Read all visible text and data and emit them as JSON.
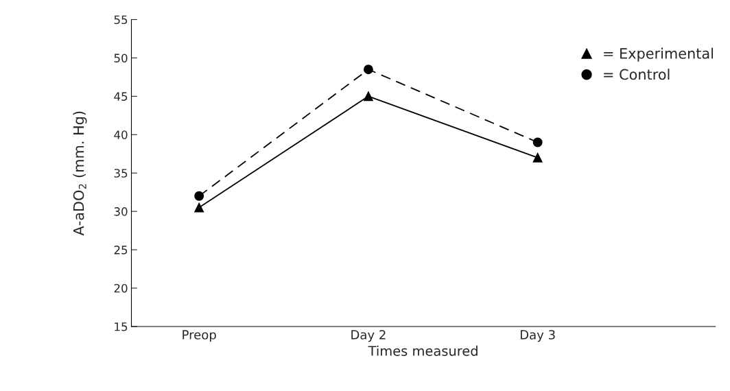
{
  "chart_data": {
    "type": "line",
    "xlabel": "Times measured",
    "ylabel": "A-aDO$_{2}$ (mm. Hg)",
    "categories": [
      "Preop",
      "Day 2",
      "Day 3"
    ],
    "series": [
      {
        "name": "= Experimental",
        "color": "#000000",
        "marker": "triangle",
        "line_style": "solid",
        "values": [
          30.5,
          45,
          37
        ]
      },
      {
        "name": "= Control",
        "color": "#000000",
        "marker": "circle",
        "line_style": "dashed",
        "values": [
          32,
          48.5,
          39
        ]
      }
    ],
    "ylim": [
      15,
      55
    ],
    "yticks": [
      15,
      20,
      25,
      30,
      35,
      40,
      45,
      50,
      55
    ],
    "grid": false,
    "legend": "top right"
  }
}
